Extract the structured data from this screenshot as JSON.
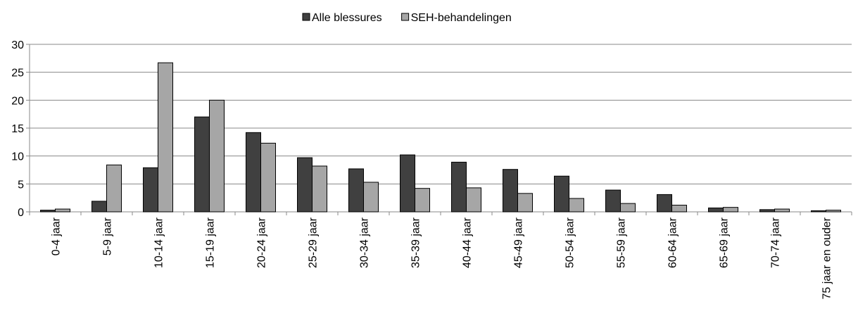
{
  "chart_data": {
    "type": "bar",
    "categories": [
      "0-4 jaar",
      "5-9 jaar",
      "10-14 jaar",
      "15-19 jaar",
      "20-24 jaar",
      "25-29 jaar",
      "30-34 jaar",
      "35-39 jaar",
      "40-44 jaar",
      "45-49 jaar",
      "50-54 jaar",
      "55-59 jaar",
      "60-64 jaar",
      "65-69 jaar",
      "70-74 jaar",
      "75 jaar en ouder"
    ],
    "series": [
      {
        "name": "Alle blessures",
        "color": "#404040",
        "values": [
          0.3,
          1.9,
          7.9,
          17,
          14.2,
          9.7,
          7.7,
          10.2,
          8.9,
          7.6,
          6.4,
          3.9,
          3.1,
          0.7,
          0.4,
          0.2
        ]
      },
      {
        "name": "SEH-behandelingen",
        "color": "#a6a6a6",
        "values": [
          0.5,
          8.4,
          26.7,
          20,
          12.3,
          8.2,
          5.3,
          4.2,
          4.3,
          3.3,
          2.4,
          1.5,
          1.2,
          0.8,
          0.5,
          0.3
        ]
      }
    ],
    "ylim": [
      0,
      30
    ],
    "yticks": [
      0,
      5,
      10,
      15,
      20,
      25,
      30
    ],
    "grid": true,
    "legend": "top"
  }
}
